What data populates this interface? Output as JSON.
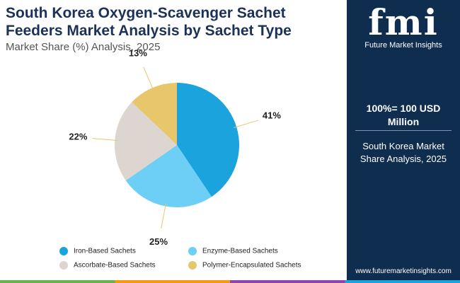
{
  "chart_data": {
    "type": "pie",
    "title": "South Korea Oxygen-Scavenger Sachet Feeders Market Analysis by Sachet Type",
    "subtitle": "Market Share (%) Analysis, 2025",
    "categories": [
      "Iron-Based Sachets",
      "Enzyme-Based Sachets",
      "Ascorbate-Based Sachets",
      "Polymer-Encapsulated Sachets"
    ],
    "values": [
      41,
      25,
      22,
      13
    ],
    "value_labels": [
      "41%",
      "25%",
      "22%",
      "13%"
    ],
    "colors": [
      "#1aa3dc",
      "#6dcff5",
      "#ddd5cf",
      "#e8c66c"
    ]
  },
  "panel": {
    "logo": "fmi",
    "brand": "Future Market Insights",
    "note": "100%= 100 USD Million",
    "description": "South Korea Market Share Analysis, 2025",
    "url": "www.futuremarketinsights.com"
  }
}
